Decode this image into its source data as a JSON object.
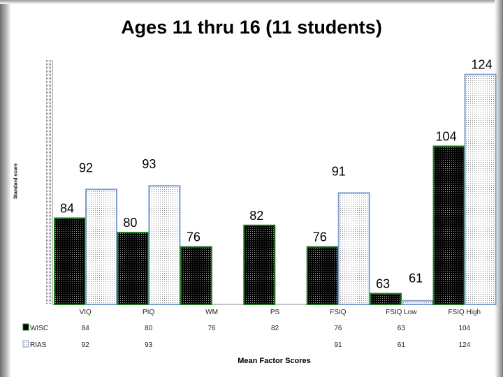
{
  "chart_data": {
    "type": "bar",
    "title": "Ages 11 thru 16 (11 students)",
    "xlabel": "Mean Factor Scores",
    "ylabel": "Standard score",
    "categories": [
      "VIQ",
      "PIQ",
      "WM",
      "PS",
      "FSIQ",
      "FSIQ Low",
      "FSIQ High"
    ],
    "series": [
      {
        "name": "WISC",
        "values": [
          84,
          80,
          76,
          82,
          76,
          63,
          104
        ],
        "value_labels": [
          "84",
          "80",
          "76",
          "82",
          "76",
          "63",
          "104"
        ],
        "table_values": [
          "84",
          "80",
          "76",
          "82",
          "76",
          "63",
          "104"
        ],
        "color": "#000000",
        "border": "#1e7a1e"
      },
      {
        "name": "RIAS",
        "values": [
          92,
          93,
          null,
          null,
          91,
          61,
          124
        ],
        "value_labels": [
          "92",
          "93",
          "",
          "",
          "91",
          "61",
          "124"
        ],
        "table_values": [
          "92",
          "93",
          "",
          "",
          "91",
          "61",
          "124"
        ],
        "color": "#ffffff",
        "border": "#7f9fcf"
      }
    ],
    "ylim": [
      60,
      128
    ],
    "grid": false,
    "legend": "data-table"
  }
}
